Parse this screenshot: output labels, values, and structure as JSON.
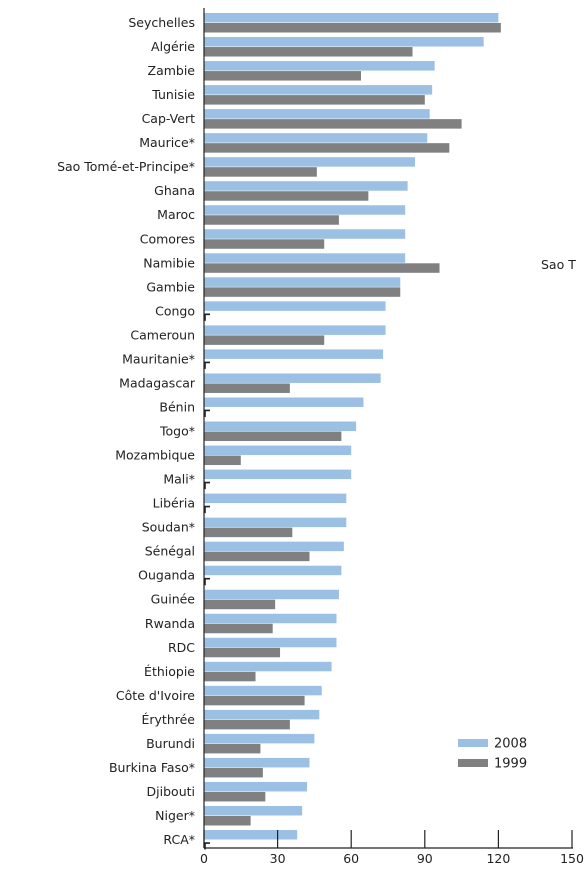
{
  "chart_data": {
    "type": "bar",
    "orientation": "horizontal",
    "title": "",
    "xlabel": "",
    "ylabel": "",
    "xlim": [
      0,
      150
    ],
    "xticks": [
      "0",
      "30",
      "60",
      "90",
      "120",
      "150"
    ],
    "grid": false,
    "legend": "bottom-right",
    "categories": [
      "Seychelles",
      "Algérie",
      "Zambie",
      "Tunisie",
      "Cap-Vert",
      "Maurice*",
      "Sao Tomé-et-Principe*",
      "Ghana",
      "Maroc",
      "Comores",
      "Namibie",
      "Gambie",
      "Congo",
      "Cameroun",
      "Mauritanie*",
      "Madagascar",
      "Bénin",
      "Togo*",
      "Mozambique",
      "Mali*",
      "Libéria",
      "Soudan*",
      "Sénégal",
      "Ouganda",
      "Guinée",
      "Rwanda",
      "RDC",
      "Éthiopie",
      "Côte d'Ivoire",
      "Érythrée",
      "Burundi",
      "Burkina Faso*",
      "Djibouti",
      "Niger*",
      "RCA*"
    ],
    "series": [
      {
        "name": "2008",
        "color": "#9cc0e3",
        "values": [
          120,
          114,
          94,
          93,
          92,
          91,
          86,
          83,
          82,
          82,
          82,
          80,
          74,
          74,
          73,
          72,
          65,
          62,
          60,
          60,
          58,
          58,
          57,
          56,
          55,
          54,
          54,
          52,
          48,
          47,
          45,
          43,
          42,
          40,
          38
        ]
      },
      {
        "name": "1999",
        "color": "#808080",
        "values": [
          121,
          85,
          64,
          90,
          105,
          100,
          46,
          67,
          55,
          49,
          96,
          80,
          0,
          49,
          0,
          35,
          0,
          56,
          15,
          0,
          0,
          36,
          43,
          0,
          29,
          28,
          31,
          21,
          41,
          35,
          23,
          24,
          25,
          19,
          0
        ]
      }
    ],
    "annotations": [
      "Sao T"
    ]
  }
}
